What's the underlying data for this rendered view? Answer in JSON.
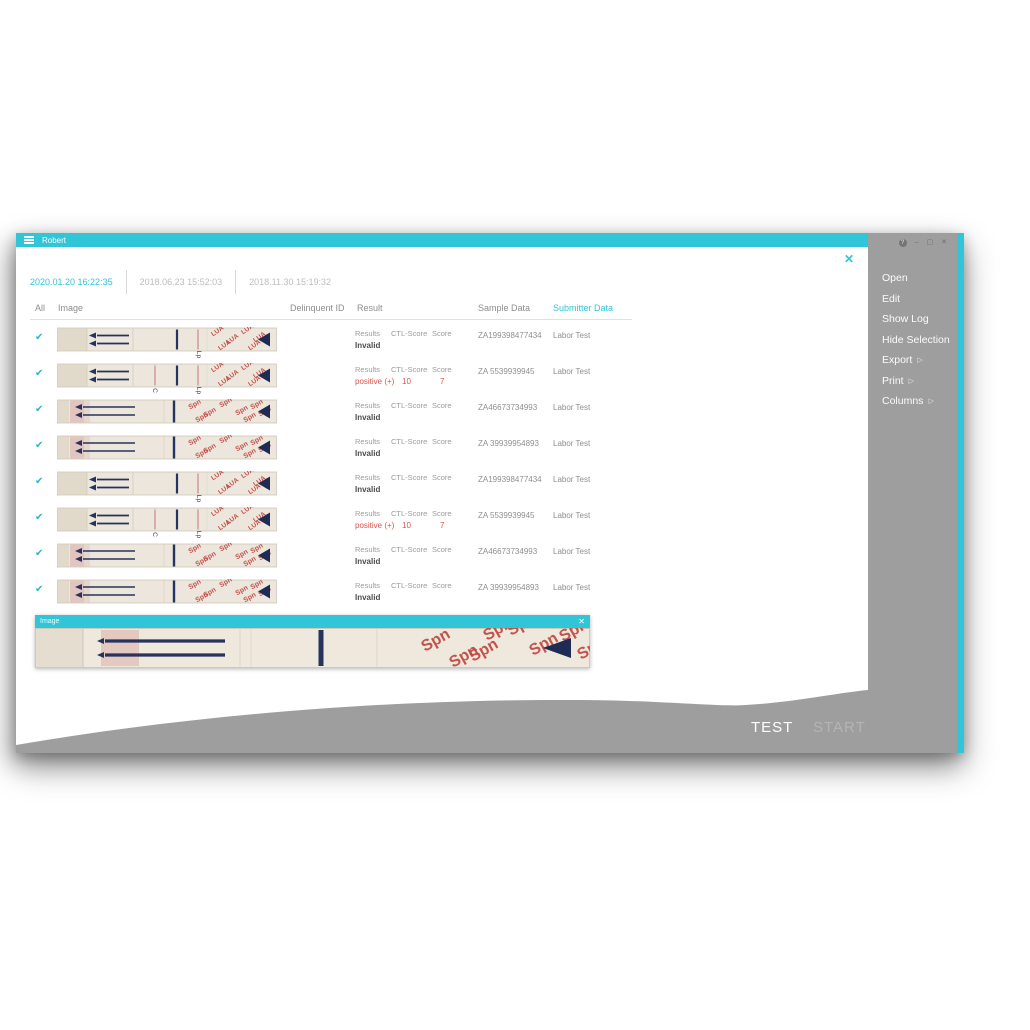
{
  "window": {
    "title": "Robert"
  },
  "window_controls": {
    "help": "?",
    "minimize": "–",
    "maximize": "▢",
    "close": "✕"
  },
  "panel": {
    "close_glyph": "✕"
  },
  "tabs": [
    {
      "label": "2020.01.20 16:22:35",
      "active": true
    },
    {
      "label": "2018.06.23 15:52:03",
      "active": false
    },
    {
      "label": "2018.11.30 15:19:32",
      "active": false
    }
  ],
  "menu": {
    "items": [
      {
        "label": "Open",
        "submenu": false
      },
      {
        "label": "Edit",
        "submenu": false
      },
      {
        "label": "Show Log",
        "submenu": false
      },
      {
        "label": "Hide Selection",
        "submenu": false
      },
      {
        "label": "Export",
        "submenu": true
      },
      {
        "label": "Print",
        "submenu": true
      },
      {
        "label": "Columns",
        "submenu": true
      }
    ]
  },
  "icons": {
    "submenu_arrow": "▷",
    "checkmark": "✔"
  },
  "table": {
    "headers": {
      "all": "All",
      "image": "Image",
      "delinquent_id": "Delinquent ID",
      "result": "Result",
      "sample_data": "Sample Data",
      "submitter_data": "Submitter Data"
    },
    "result_subheaders": [
      "Results",
      "CTL-Score",
      "Score"
    ],
    "strip_text_patterns": {
      "lua": "LUA",
      "spn": "Spn"
    },
    "rows": [
      {
        "checked": true,
        "strip_type": "lua",
        "strip_labels": [
          "Lp"
        ],
        "result": "Invalid",
        "positive": false,
        "ctl_score": "",
        "score": "",
        "sample": "ZA199398477434",
        "submitter": "Labor Test"
      },
      {
        "checked": true,
        "strip_type": "lua",
        "strip_labels": [
          "C",
          "Lp"
        ],
        "result": "positive (+)",
        "positive": true,
        "ctl_score": "10",
        "score": "7",
        "sample": "ZA 5539939945",
        "submitter": "Labor Test"
      },
      {
        "checked": true,
        "strip_type": "spn",
        "strip_labels": [],
        "result": "Invalid",
        "positive": false,
        "ctl_score": "",
        "score": "",
        "sample": "ZA46673734993",
        "submitter": "Labor Test"
      },
      {
        "checked": true,
        "strip_type": "spn",
        "strip_labels": [],
        "result": "Invalid",
        "positive": false,
        "ctl_score": "",
        "score": "",
        "sample": "ZA 39939954893",
        "submitter": "Labor Test"
      },
      {
        "checked": true,
        "strip_type": "lua",
        "strip_labels": [
          "Lp"
        ],
        "result": "Invalid",
        "positive": false,
        "ctl_score": "",
        "score": "",
        "sample": "ZA199398477434",
        "submitter": "Labor Test"
      },
      {
        "checked": true,
        "strip_type": "lua",
        "strip_labels": [
          "C",
          "Lp"
        ],
        "result": "positive (+)",
        "positive": true,
        "ctl_score": "10",
        "score": "7",
        "sample": "ZA 5539939945",
        "submitter": "Labor Test"
      },
      {
        "checked": true,
        "strip_type": "spn",
        "strip_labels": [],
        "result": "Invalid",
        "positive": false,
        "ctl_score": "",
        "score": "",
        "sample": "ZA46673734993",
        "submitter": "Labor Test"
      },
      {
        "checked": true,
        "strip_type": "spn",
        "strip_labels": [],
        "result": "Invalid",
        "positive": false,
        "ctl_score": "",
        "score": "",
        "sample": "ZA 39939954893",
        "submitter": "Labor Test"
      }
    ]
  },
  "preview": {
    "title": "Image",
    "close_glyph": "✕",
    "strip_type": "spn"
  },
  "footer": {
    "test_label": "TEST",
    "start_label": "START"
  },
  "colors": {
    "accent": "#31c5d8",
    "sidebar_gray": "#9e9e9e",
    "positive_red": "#d9534a",
    "strip_navy": "#26335f",
    "strip_red": "#c0443c"
  }
}
